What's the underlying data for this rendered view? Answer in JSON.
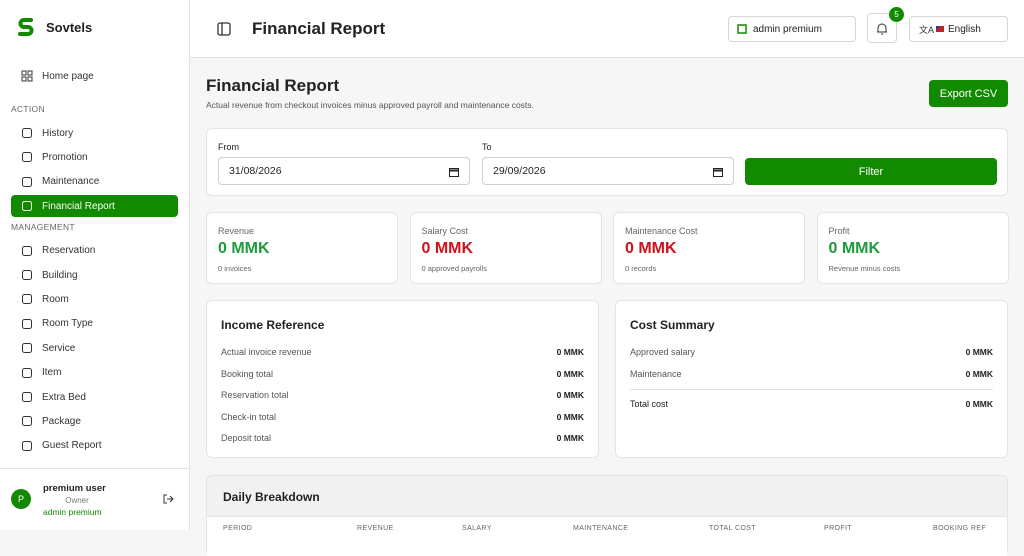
{
  "brand": "Sovtels",
  "sidebar": {
    "home": "Home page",
    "sections": [
      {
        "title": "ACTION",
        "items": [
          "History",
          "Promotion",
          "Maintenance",
          "Financial Report"
        ]
      },
      {
        "title": "MANAGEMENT",
        "items": [
          "Reservation",
          "Building",
          "Room",
          "Room Type",
          "Service",
          "Item",
          "Extra Bed",
          "Package",
          "Guest Report"
        ]
      }
    ]
  },
  "user": {
    "initial": "P",
    "name": "premium user",
    "role": "Owner",
    "plan": "admin premium"
  },
  "header": {
    "title": "Financial Report",
    "account": "admin premium",
    "notifications": "5",
    "language": "English"
  },
  "page": {
    "title": "Financial Report",
    "subtitle": "Actual revenue from checkout invoices minus approved payroll and maintenance costs.",
    "export": "Export CSV"
  },
  "filter": {
    "from_label": "From",
    "from": "31/08/2026",
    "to_label": "To",
    "to": "29/09/2026",
    "button": "Filter"
  },
  "cards": [
    {
      "label": "Revenue",
      "value": "0 MMK",
      "note": "0 invoices"
    },
    {
      "label": "Salary Cost",
      "value": "0 MMK",
      "note": "0 approved payrolls"
    },
    {
      "label": "Maintenance Cost",
      "value": "0 MMK",
      "note": "0 records"
    },
    {
      "label": "Profit",
      "value": "0 MMK",
      "note": "Revenue minus costs"
    }
  ],
  "income": {
    "title": "Income Reference",
    "rows": [
      [
        "Actual invoice revenue",
        "0 MMK"
      ],
      [
        "Booking total",
        "0 MMK"
      ],
      [
        "Reservation total",
        "0 MMK"
      ],
      [
        "Check-in total",
        "0 MMK"
      ],
      [
        "Deposit total",
        "0 MMK"
      ]
    ]
  },
  "cost": {
    "title": "Cost Summary",
    "rows": [
      [
        "Approved salary",
        "0 MMK"
      ],
      [
        "Maintenance",
        "0 MMK"
      ]
    ],
    "total": [
      "Total cost",
      "0 MMK"
    ]
  },
  "daily": {
    "title": "Daily Breakdown",
    "columns": [
      "PERIOD",
      "REVENUE",
      "SALARY",
      "MAINTENANCE",
      "TOTAL COST",
      "PROFIT",
      "BOOKING REF"
    ]
  }
}
